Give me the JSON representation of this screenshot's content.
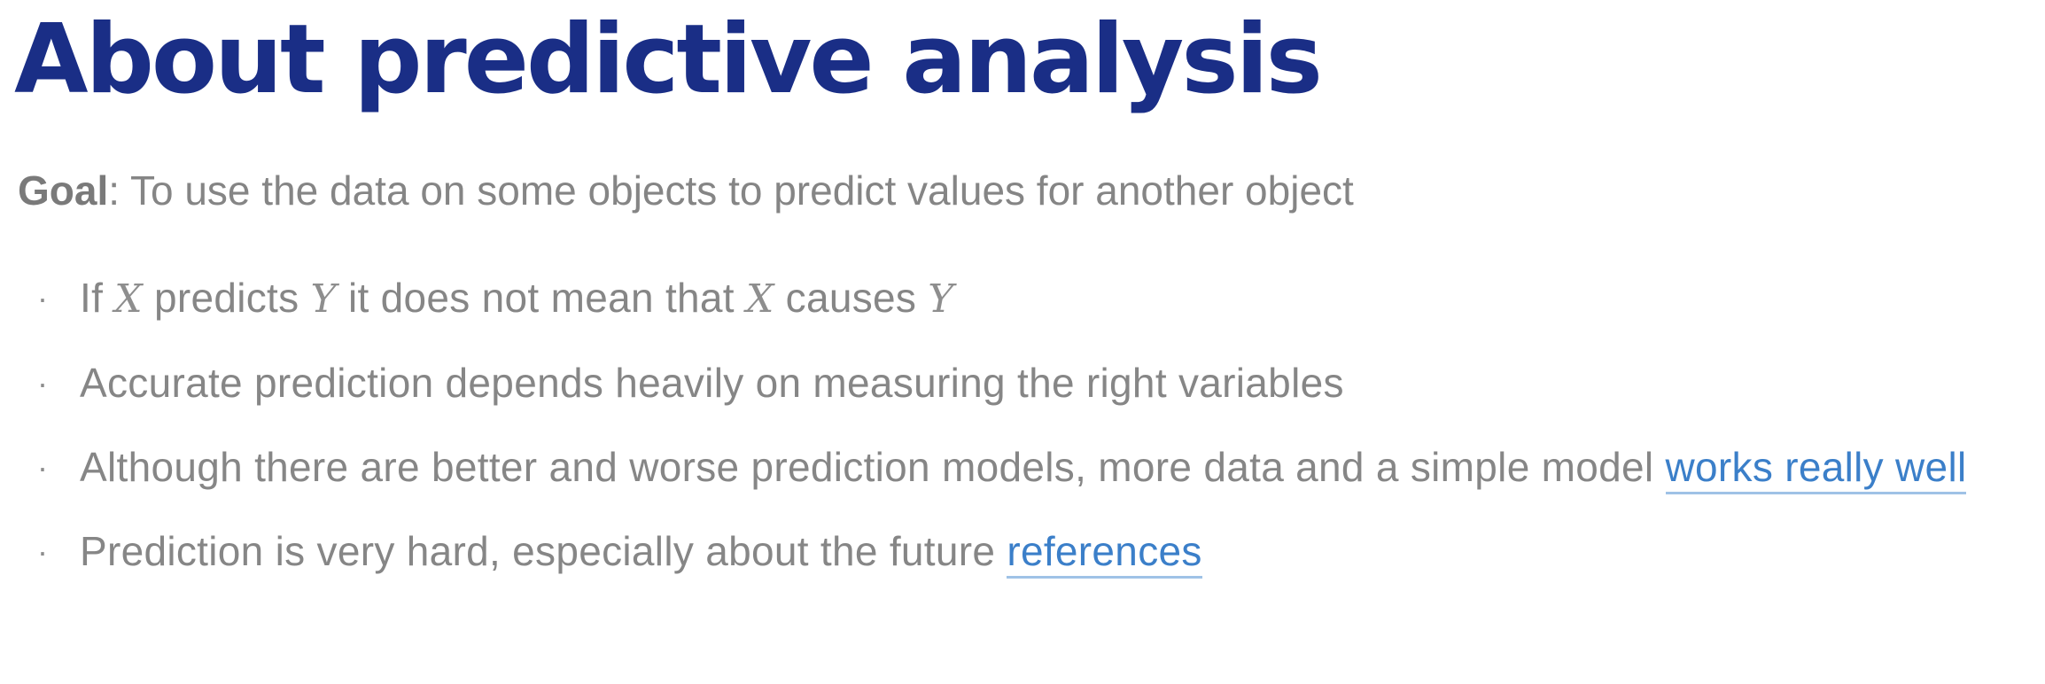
{
  "slide": {
    "title": "About predictive analysis",
    "goal": {
      "label": "Goal",
      "text": ": To use the data on some objects to predict values for another object"
    },
    "bullets": [
      {
        "t1": "If ",
        "m1": "X",
        "t2": " predicts ",
        "m2": "Y",
        "t3": " it does not mean that ",
        "m3": "X",
        "t4": " causes ",
        "m4": "Y"
      },
      {
        "text": "Accurate prediction depends heavily on measuring the right variables"
      },
      {
        "text": "Although there are better and worse prediction models, more data and a simple model ",
        "link": "works really well"
      },
      {
        "text": "Prediction is very hard, especially about the future ",
        "link": "references"
      }
    ],
    "colors": {
      "title": "#1a2e86",
      "body_text": "#868686",
      "link": "#3b7fc9"
    }
  }
}
